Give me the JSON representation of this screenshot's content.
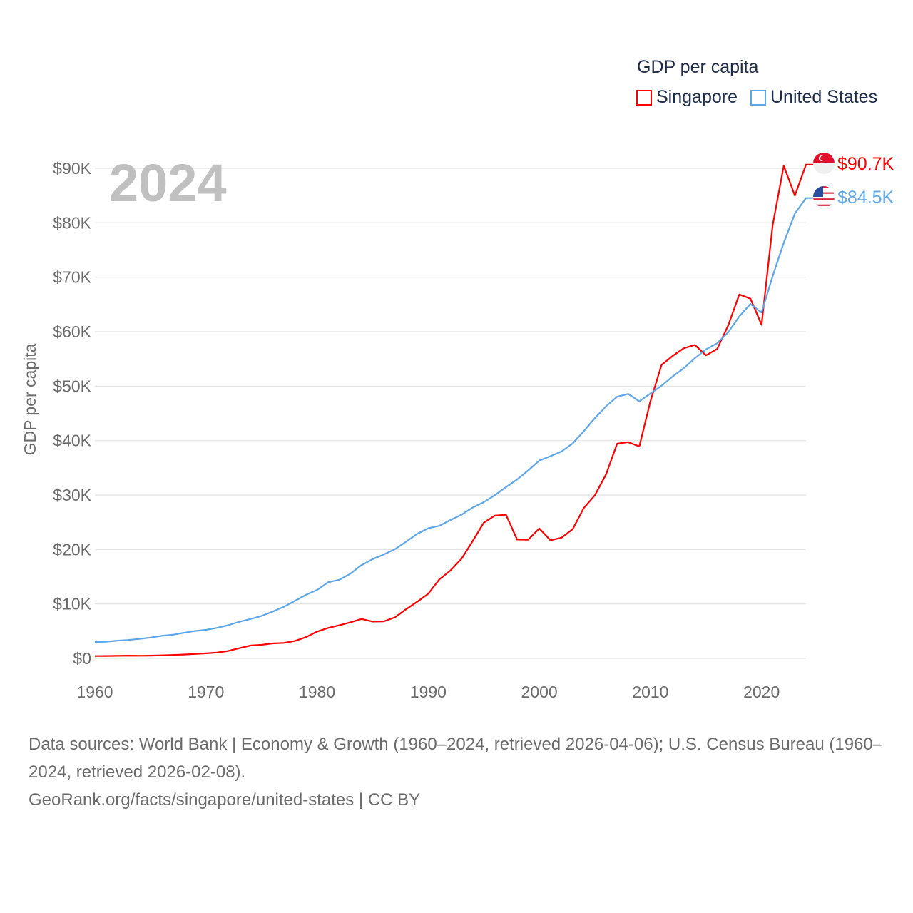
{
  "chart_data": {
    "type": "line",
    "title": "",
    "legend_title": "GDP per capita",
    "legend_position": "top-right",
    "xlabel": "",
    "ylabel": "GDP per capita",
    "current_year": "2024",
    "xlim": [
      1960,
      2024
    ],
    "ylim": [
      0,
      90000
    ],
    "x_ticks": [
      "1960",
      "1970",
      "1980",
      "1990",
      "2000",
      "2010",
      "2020"
    ],
    "x_tick_values": [
      1960,
      1970,
      1980,
      1990,
      2000,
      2010,
      2020
    ],
    "y_ticks": [
      "$0",
      "$10K",
      "$20K",
      "$30K",
      "$40K",
      "$50K",
      "$60K",
      "$70K",
      "$80K",
      "$90K"
    ],
    "y_tick_values": [
      0,
      10000,
      20000,
      30000,
      40000,
      50000,
      60000,
      70000,
      80000,
      90000
    ],
    "grid": true,
    "x_start": 1960,
    "series": [
      {
        "name": "Singapore",
        "color": "#ff0000",
        "end_label": "$90.7K",
        "flag": "singapore-flag",
        "values": [
          428,
          449,
          472,
          511,
          485,
          517,
          567,
          626,
          708,
          813,
          926,
          1072,
          1356,
          1875,
          2362,
          2487,
          2750,
          2846,
          3194,
          3901,
          4929,
          5596,
          6078,
          6633,
          7228,
          6754,
          6800,
          7539,
          9017,
          10394,
          11862,
          14502,
          16136,
          18302,
          21553,
          24915,
          26233,
          26376,
          21829,
          21796,
          23853,
          21700,
          22160,
          23730,
          27608,
          29961,
          33769,
          39432,
          39722,
          38927,
          47237,
          53891,
          55546,
          56967,
          57563,
          55647,
          56828,
          61176,
          66840,
          66070,
          61274,
          79601,
          90452,
          85000,
          90674
        ]
      },
      {
        "name": "United States",
        "color": "#5ea6ea",
        "end_label": "$84.5K",
        "flag": "united-states-flag",
        "values": [
          3007,
          3067,
          3244,
          3375,
          3574,
          3828,
          4146,
          4336,
          4696,
          5032,
          5234,
          5609,
          6094,
          6726,
          7226,
          7801,
          8592,
          9453,
          10565,
          11674,
          12575,
          13976,
          14434,
          15544,
          17121,
          18237,
          19071,
          20039,
          21417,
          22857,
          23889,
          24342,
          25419,
          26387,
          27695,
          28691,
          29968,
          31459,
          32854,
          34515,
          36330,
          37134,
          37998,
          39490,
          41725,
          44123,
          46302,
          48050,
          48570,
          47195,
          48651,
          50066,
          51784,
          53291,
          55123,
          56763,
          57867,
          59915,
          62805,
          65095,
          63528,
          70219,
          76330,
          81695,
          84534
        ]
      }
    ]
  },
  "footer": {
    "sources": "Data sources: World Bank | Economy & Growth (1960–2024, retrieved 2026-04-06); U.S. Census Bureau (1960–2024, retrieved 2026-02-08).",
    "credit": "GeoRank.org/facts/singapore/united-states | CC BY"
  }
}
